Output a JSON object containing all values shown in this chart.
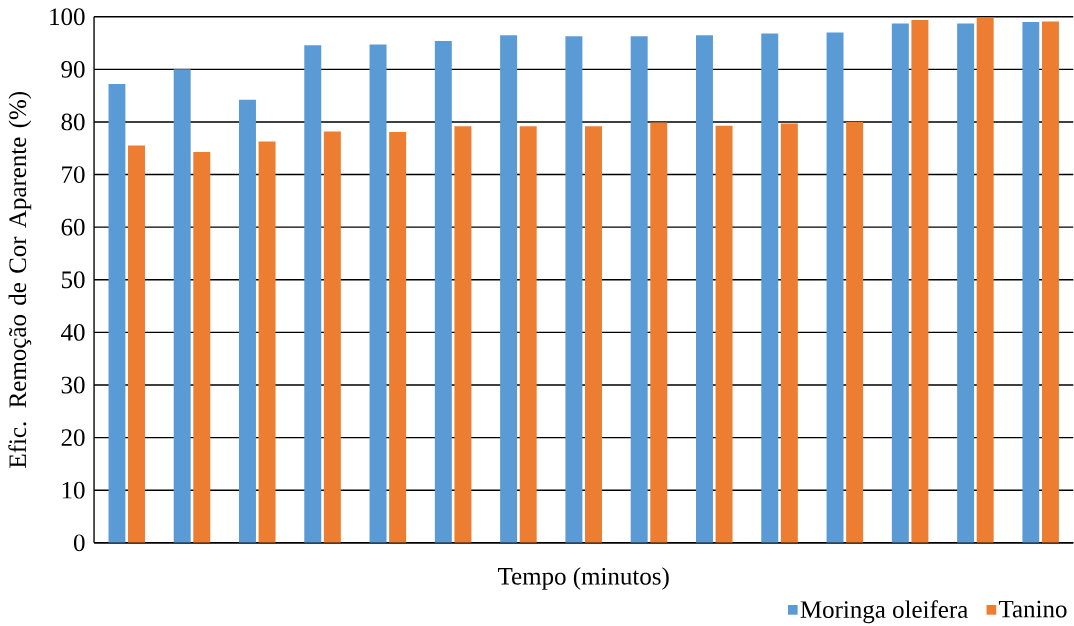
{
  "chart_data": {
    "type": "bar",
    "xlabel": "Tempo (minutos)",
    "ylabel": "Efic. Remoção de Cor Aparente (%)",
    "categories": [
      null,
      null,
      null,
      null,
      null,
      null,
      null,
      null,
      null,
      null,
      null,
      null,
      null,
      null,
      null
    ],
    "series": [
      {
        "name": "Moringa oleifera",
        "color": "#5b9bd5",
        "values": [
          87.2,
          90.0,
          84.2,
          94.6,
          94.7,
          95.4,
          96.5,
          96.3,
          96.3,
          96.5,
          96.8,
          97.0,
          98.7,
          98.7,
          99.0
        ]
      },
      {
        "name": "Tanino",
        "color": "#ed7d31",
        "values": [
          75.5,
          74.3,
          76.3,
          78.2,
          78.1,
          79.2,
          79.2,
          79.2,
          79.9,
          79.3,
          79.7,
          80.0,
          99.4,
          99.8,
          99.1
        ]
      }
    ],
    "ylim": [
      0,
      100
    ],
    "yticks": [
      0,
      10,
      20,
      30,
      40,
      50,
      60,
      70,
      80,
      90,
      100
    ],
    "grid": "y",
    "legend": "bottom"
  }
}
